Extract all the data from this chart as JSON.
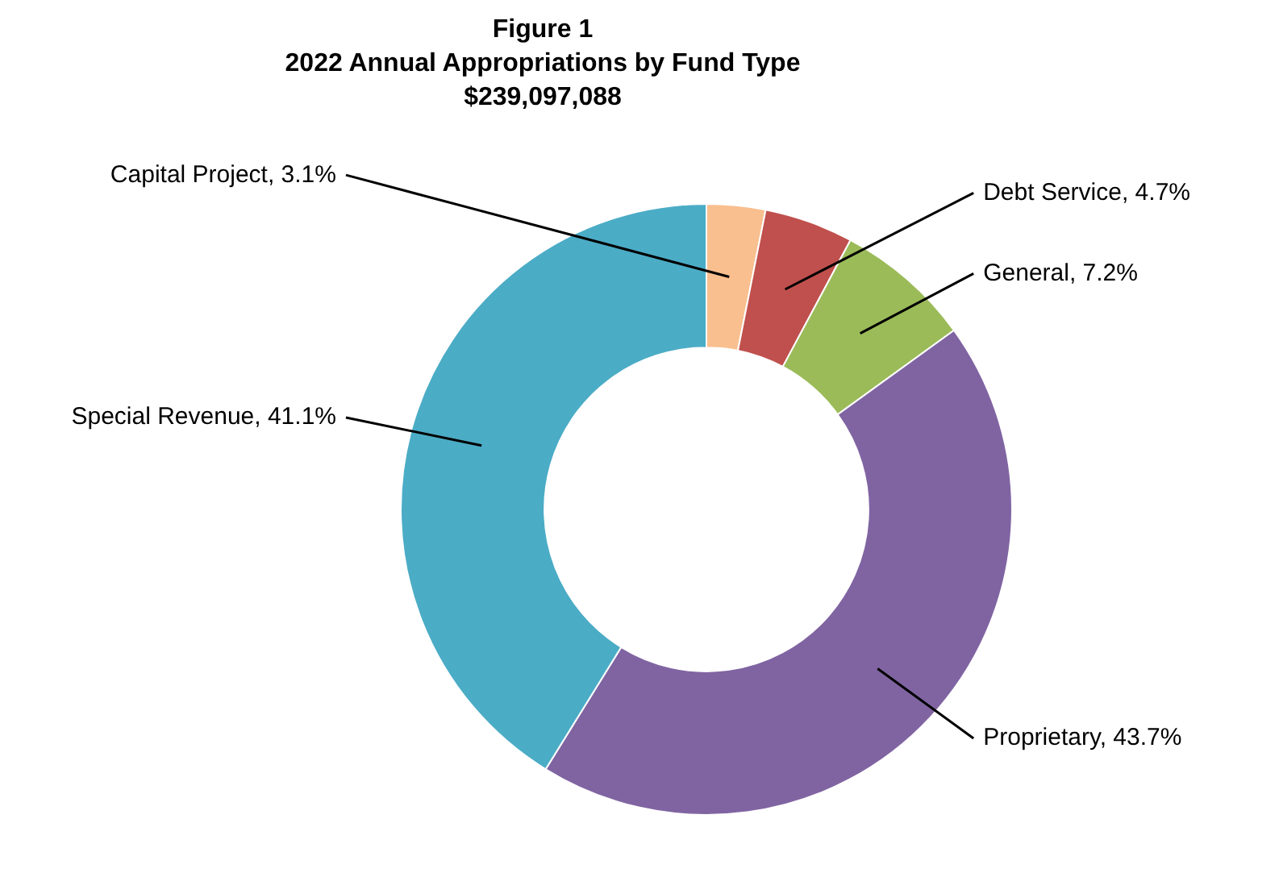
{
  "chart_data": {
    "type": "donut",
    "annotations": [
      "Figure 1"
    ],
    "title": "2022 Annual Appropriations  by Fund Type",
    "subtitle": "$239,097,088",
    "categories": [
      "Capital Project",
      "Debt Service",
      "General",
      "Proprietary",
      "Special Revenue"
    ],
    "values": [
      3.1,
      4.7,
      7.2,
      43.7,
      41.1
    ],
    "value_labels": [
      "3.1%",
      "4.7%",
      "7.2%",
      "43.7%",
      "41.1%"
    ],
    "colors": [
      "#f9bf8f",
      "#c0504d",
      "#9bbb59",
      "#8064a2",
      "#4bacc6"
    ],
    "legend": false
  }
}
